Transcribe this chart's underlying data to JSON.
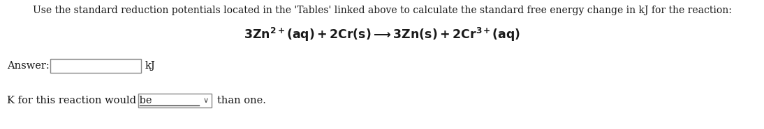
{
  "background_color": "#ffffff",
  "top_text": "Use the standard reduction potentials located in the 'Tables' linked above to calculate the standard free energy change in kJ for the reaction:",
  "answer_label": "Answer:",
  "answer_unit": "kJ",
  "k_label": "K for this reaction would be",
  "k_suffix": "than one.",
  "text_color": "#2B2B8B",
  "eq_color": "#1a1a1a",
  "font_size_top": 10.0,
  "font_size_eq": 12.5,
  "font_size_body": 10.5
}
